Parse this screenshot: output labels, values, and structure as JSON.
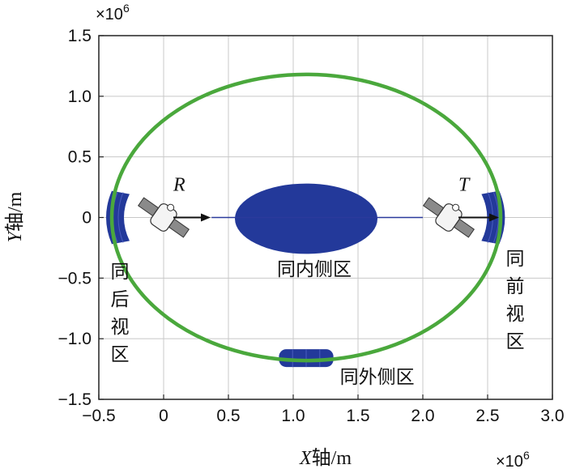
{
  "chart_data": {
    "type": "scatter",
    "x_multiplier": "×10^6",
    "y_multiplier": "×10^6",
    "xlabel_var": "X",
    "xlabel_unit": "轴/m",
    "ylabel_var": "Y",
    "ylabel_unit": "轴/m",
    "xlim": [
      -0.5,
      3.0
    ],
    "ylim": [
      -1.5,
      1.5
    ],
    "x_ticks": [
      -0.5,
      0,
      0.5,
      1.0,
      1.5,
      2.0,
      2.5,
      3.0
    ],
    "x_tick_labels": [
      "−0.5",
      "0",
      "0.5",
      "1.0",
      "1.5",
      "2.0",
      "2.5",
      "3.0"
    ],
    "y_ticks": [
      -1.5,
      -1.0,
      -0.5,
      0,
      0.5,
      1.0,
      1.5
    ],
    "y_tick_labels": [
      "−1.5",
      "−1.0",
      "−0.5",
      "0",
      "0.5",
      "1.0",
      "1.5"
    ],
    "grid": true,
    "orbit": {
      "center": [
        1.1,
        0.0
      ],
      "semi_x": 1.5,
      "semi_y": 1.18,
      "color": "#4aa83c"
    },
    "target_line": {
      "x": [
        0.37,
        2.0
      ],
      "y": [
        0.0,
        0.0
      ],
      "color": "#2b3a9c"
    },
    "regions": [
      {
        "label": "同内侧区",
        "shape": "ellipse",
        "center": [
          1.1,
          -0.01
        ],
        "semi_x": 0.55,
        "semi_y": 0.29
      },
      {
        "label": "同外侧区",
        "shape": "band",
        "x_range": [
          0.89,
          1.31
        ],
        "y": -1.16
      },
      {
        "label": "同后视区",
        "shape": "arc",
        "x": -0.4,
        "y_range": [
          -0.22,
          0.22
        ]
      },
      {
        "label": "同前视区",
        "shape": "arc",
        "x": 2.59,
        "y_range": [
          -0.22,
          0.22
        ]
      }
    ],
    "region_color": "#23399a",
    "spacecraft": [
      {
        "label": "R",
        "x": 0.0,
        "y": 0.0
      },
      {
        "label": "T",
        "x": 2.2,
        "y": 0.0
      }
    ]
  }
}
